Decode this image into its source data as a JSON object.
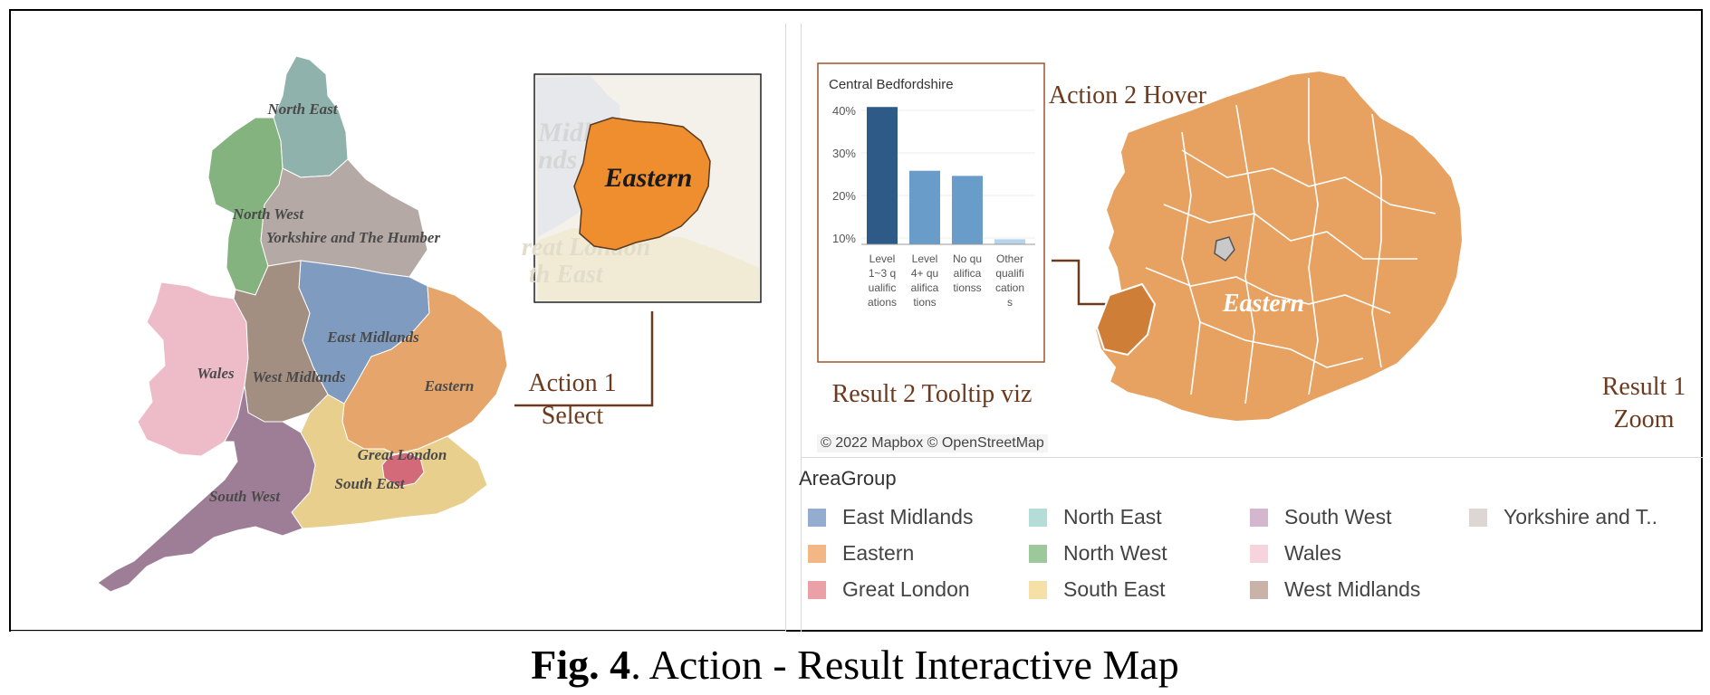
{
  "left_map": {
    "labels": {
      "north_east": "North East",
      "north_west": "North West",
      "yorkshire": "Yorkshire and The Humber",
      "east_midlands": "East Midlands",
      "wales": "Wales",
      "west_midlands": "West Midlands",
      "eastern": "Eastern",
      "great_london": "Great London",
      "south_east": "South East",
      "south_west": "South West"
    },
    "inset": {
      "highlight": "Eastern",
      "faded_1": "Midlan",
      "faded_2": "nds",
      "faded_3": "reat London",
      "faded_4": "th East"
    },
    "action1_line1": "Action 1",
    "action1_line2": "Select"
  },
  "tooltip": {
    "title": "Central Bedfordshire",
    "y_ticks": [
      "40%",
      "30%",
      "20%",
      "10%"
    ],
    "label": "Result 2 Tooltip viz"
  },
  "chart_data": {
    "type": "bar",
    "title": "Central Bedfordshire",
    "categories": [
      "Level 1~3 qualifications",
      "Level 4+ qualifications",
      "No qualificationss",
      "Other qualifications"
    ],
    "category_lines": [
      [
        "Level",
        "1~3 q",
        "ualific",
        "ations"
      ],
      [
        "Level",
        "4+ qu",
        "alifica",
        "tions"
      ],
      [
        "No qu",
        "alifica",
        "tionss"
      ],
      [
        "Other",
        "qualifi",
        "cation",
        "s"
      ]
    ],
    "values": [
      40.8,
      25.8,
      24.6,
      9.7
    ],
    "yticks": [
      "40%",
      "30%",
      "20%",
      "10%"
    ],
    "colors": [
      "#2d5a87",
      "#6a9cc9",
      "#6a9cc9",
      "#b8d4ea"
    ]
  },
  "right_map": {
    "action2": "Action 2 Hover",
    "region_label": "Eastern",
    "result1_line1": "Result 1",
    "result1_line2": "Zoom",
    "copyright": "© 2022 Mapbox © OpenStreetMap"
  },
  "legend": {
    "title": "AreaGroup",
    "items": [
      {
        "label": "East Midlands",
        "color": "#94acd0"
      },
      {
        "label": "Eastern",
        "color": "#f2b784"
      },
      {
        "label": "Great London",
        "color": "#eaa0a6"
      },
      {
        "label": "North East",
        "color": "#b3ddd6"
      },
      {
        "label": "North West",
        "color": "#9dc89a"
      },
      {
        "label": "South East",
        "color": "#f6e0a8"
      },
      {
        "label": "South West",
        "color": "#d4b6ce"
      },
      {
        "label": "Wales",
        "color": "#f7d4dd"
      },
      {
        "label": "West Midlands",
        "color": "#c9b2a7"
      },
      {
        "label": "Yorkshire and T..",
        "color": "#ddd6d3"
      }
    ]
  },
  "caption": {
    "bold": "Fig. 4",
    "rest": ". Action - Result Interactive Map"
  },
  "colors": {
    "annotation": "#6b3a1f",
    "eastern_orange": "#ef8e2e"
  }
}
